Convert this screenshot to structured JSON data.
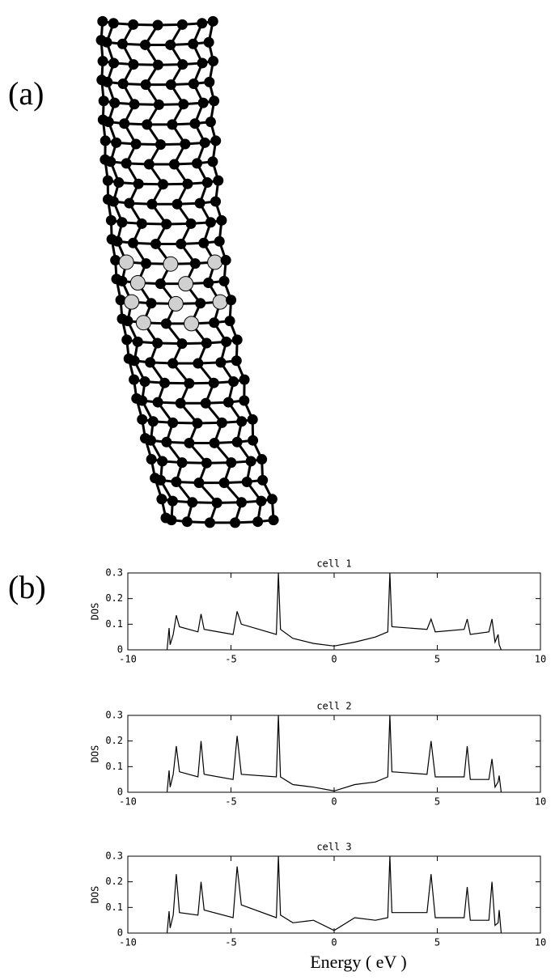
{
  "labels": [
    "(a)",
    "(b)"
  ],
  "chart_data": [
    {
      "type": "line",
      "title": "cell 1",
      "y_label": "DOS",
      "xlim": [
        -10,
        10
      ],
      "ylim": [
        0,
        0.3
      ],
      "xticks": [
        -10,
        -5,
        0,
        5,
        10
      ],
      "yticks": [
        0,
        0.1,
        0.2,
        0.3
      ],
      "color": "#000000",
      "x": [
        -8.1,
        -8.0,
        -7.95,
        -7.8,
        -7.65,
        -7.5,
        -6.6,
        -6.45,
        -6.3,
        -4.9,
        -4.7,
        -4.5,
        -2.8,
        -2.7,
        -2.6,
        -2,
        -1,
        0,
        1,
        2,
        2.6,
        2.7,
        2.8,
        4.5,
        4.7,
        4.9,
        6.3,
        6.45,
        6.6,
        7.5,
        7.65,
        7.8,
        7.95,
        8.0,
        8.1
      ],
      "values": [
        0,
        0.085,
        0.02,
        0.06,
        0.135,
        0.09,
        0.07,
        0.14,
        0.08,
        0.06,
        0.15,
        0.1,
        0.06,
        0.3,
        0.08,
        0.045,
        0.025,
        0.015,
        0.03,
        0.05,
        0.07,
        0.3,
        0.09,
        0.08,
        0.12,
        0.07,
        0.08,
        0.12,
        0.06,
        0.07,
        0.12,
        0.03,
        0.06,
        0.02,
        0
      ]
    },
    {
      "type": "line",
      "title": "cell 2",
      "y_label": "DOS",
      "xlim": [
        -10,
        10
      ],
      "ylim": [
        0,
        0.3
      ],
      "xticks": [
        -10,
        -5,
        0,
        5,
        10
      ],
      "yticks": [
        0,
        0.1,
        0.2,
        0.3
      ],
      "color": "#000000",
      "x": [
        -8.1,
        -8.0,
        -7.95,
        -7.8,
        -7.65,
        -7.5,
        -6.6,
        -6.45,
        -6.3,
        -4.9,
        -4.7,
        -4.5,
        -2.8,
        -2.7,
        -2.6,
        -2,
        -1,
        0,
        1,
        2,
        2.6,
        2.7,
        2.8,
        4.5,
        4.7,
        4.9,
        6.3,
        6.45,
        6.6,
        7.5,
        7.65,
        7.8,
        7.95,
        8.0,
        8.1
      ],
      "values": [
        0,
        0.085,
        0.02,
        0.07,
        0.18,
        0.08,
        0.06,
        0.2,
        0.07,
        0.05,
        0.22,
        0.07,
        0.06,
        0.3,
        0.06,
        0.03,
        0.02,
        0.005,
        0.03,
        0.04,
        0.06,
        0.3,
        0.08,
        0.07,
        0.2,
        0.06,
        0.06,
        0.18,
        0.05,
        0.05,
        0.13,
        0.02,
        0.04,
        0.065,
        0
      ]
    },
    {
      "type": "line",
      "title": "cell 3",
      "y_label": "DOS",
      "x_label": "Energy ( eV )",
      "xlim": [
        -10,
        10
      ],
      "ylim": [
        0,
        0.3
      ],
      "xticks": [
        -10,
        -5,
        0,
        5,
        10
      ],
      "yticks": [
        0,
        0.1,
        0.2,
        0.3
      ],
      "color": "#000000",
      "x": [
        -8.1,
        -8.0,
        -7.95,
        -7.8,
        -7.65,
        -7.5,
        -6.6,
        -6.45,
        -6.3,
        -4.9,
        -4.7,
        -4.5,
        -2.8,
        -2.7,
        -2.6,
        -2,
        -1,
        0,
        1,
        2,
        2.6,
        2.7,
        2.8,
        4.5,
        4.7,
        4.9,
        6.3,
        6.45,
        6.6,
        7.5,
        7.65,
        7.8,
        7.95,
        8.0,
        8.1
      ],
      "values": [
        0,
        0.085,
        0.02,
        0.07,
        0.23,
        0.08,
        0.07,
        0.2,
        0.09,
        0.06,
        0.26,
        0.11,
        0.06,
        0.3,
        0.07,
        0.04,
        0.05,
        0.01,
        0.06,
        0.05,
        0.06,
        0.3,
        0.08,
        0.08,
        0.23,
        0.06,
        0.06,
        0.18,
        0.05,
        0.05,
        0.2,
        0.03,
        0.04,
        0.09,
        0
      ]
    }
  ]
}
